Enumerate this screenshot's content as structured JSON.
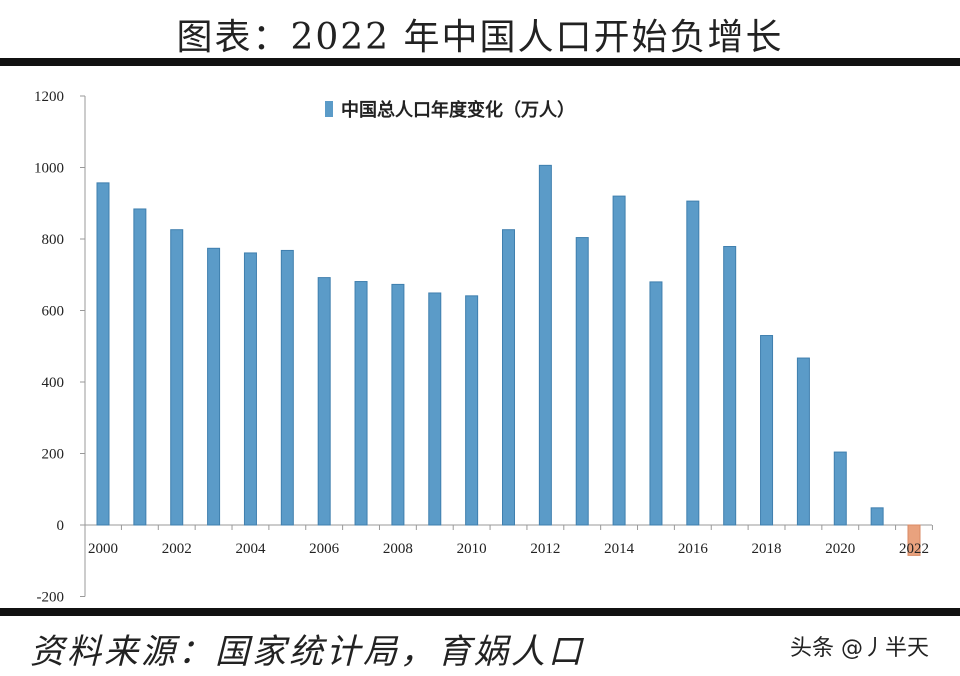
{
  "title": "图表：2022 年中国人口开始负增长",
  "source": "资料来源：国家统计局，育娲人口",
  "watermark": "头条 @丿半天",
  "colors": {
    "positive": "#5b9bc8",
    "negative": "#e9a27e"
  },
  "chart_data": {
    "type": "bar",
    "title": "",
    "xlabel": "",
    "ylabel": "",
    "legend": {
      "label": "中国总人口年度变化（万人）",
      "placement": "top-center"
    },
    "categories": [
      "2000",
      "2001",
      "2002",
      "2003",
      "2004",
      "2005",
      "2006",
      "2007",
      "2008",
      "2009",
      "2010",
      "2011",
      "2012",
      "2013",
      "2014",
      "2015",
      "2016",
      "2017",
      "2018",
      "2019",
      "2020",
      "2021",
      "2022"
    ],
    "values": [
      957,
      884,
      826,
      774,
      761,
      768,
      692,
      681,
      673,
      649,
      641,
      826,
      1006,
      804,
      920,
      680,
      906,
      779,
      530,
      467,
      204,
      48,
      -85
    ],
    "x_tick_labels": [
      "2000",
      "2002",
      "2004",
      "2006",
      "2008",
      "2010",
      "2012",
      "2014",
      "2016",
      "2018",
      "2020",
      "2022"
    ],
    "y_ticks": [
      -200,
      0,
      200,
      400,
      600,
      800,
      1000,
      1200
    ],
    "ylim": [
      -200,
      1200
    ],
    "grid": false
  }
}
